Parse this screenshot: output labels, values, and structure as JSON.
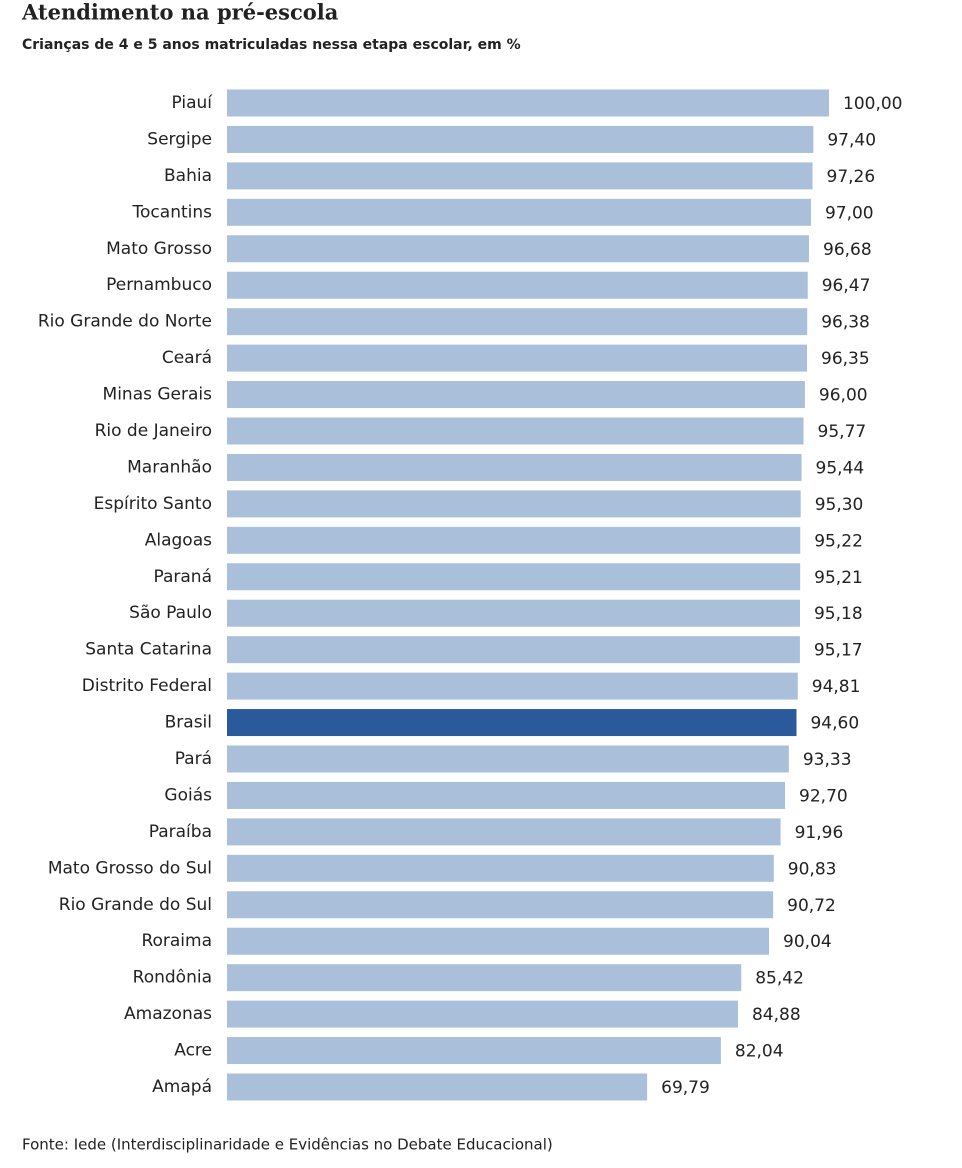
{
  "chart_data": {
    "type": "hbar",
    "title": "Atendimento na pré-escola",
    "subtitle": "Crianças de 4 e 5 anos matriculadas nessa etapa escolar, em %",
    "source": "Fonte: Iede (Interdisciplinaridade e Evidências no Debate Educacional)",
    "categories": [
      "Piauí",
      "Sergipe",
      "Bahia",
      "Tocantins",
      "Mato Grosso",
      "Pernambuco",
      "Rio Grande do Norte",
      "Ceará",
      "Minas Gerais",
      "Rio de Janeiro",
      "Maranhão",
      "Espírito Santo",
      "Alagoas",
      "Paraná",
      "São Paulo",
      "Santa Catarina",
      "Distrito Federal",
      "Brasil",
      "Pará",
      "Goiás",
      "Paraíba",
      "Mato Grosso do Sul",
      "Rio Grande do Sul",
      "Roraima",
      "Rondônia",
      "Amazonas",
      "Acre",
      "Amapá"
    ],
    "values": [
      100,
      97.4,
      97.26,
      97,
      96.68,
      96.47,
      96.38,
      96.35,
      96,
      95.77,
      95.44,
      95.3,
      95.22,
      95.21,
      95.18,
      95.17,
      94.81,
      94.6,
      93.33,
      92.7,
      91.96,
      90.83,
      90.72,
      90.04,
      85.42,
      84.88,
      82.04,
      69.79
    ],
    "value_labels": [
      "100,00",
      "97,40",
      "97,26",
      "97,00",
      "96,68",
      "96,47",
      "96,38",
      "96,35",
      "96,00",
      "95,77",
      "95,44",
      "95,30",
      "95,22",
      "95,21",
      "95,18",
      "95,17",
      "94,81",
      "94,60",
      "93,33",
      "92,70",
      "91,96",
      "90,83",
      "90,72",
      "90,04",
      "85,42",
      "84,88",
      "82,04",
      "69,79"
    ],
    "colors": [
      "#aabfda",
      "#aabfda",
      "#aabfda",
      "#aabfda",
      "#aabfda",
      "#aabfda",
      "#aabfda",
      "#aabfda",
      "#aabfda",
      "#aabfda",
      "#aabfda",
      "#aabfda",
      "#aabfda",
      "#aabfda",
      "#aabfda",
      "#aabfda",
      "#aabfda",
      "#2b5a9c",
      "#aabfda",
      "#aabfda",
      "#aabfda",
      "#aabfda",
      "#aabfda",
      "#aabfda",
      "#aabfda",
      "#aabfda",
      "#aabfda",
      "#aabfda"
    ],
    "xlim": [
      0,
      100
    ]
  }
}
